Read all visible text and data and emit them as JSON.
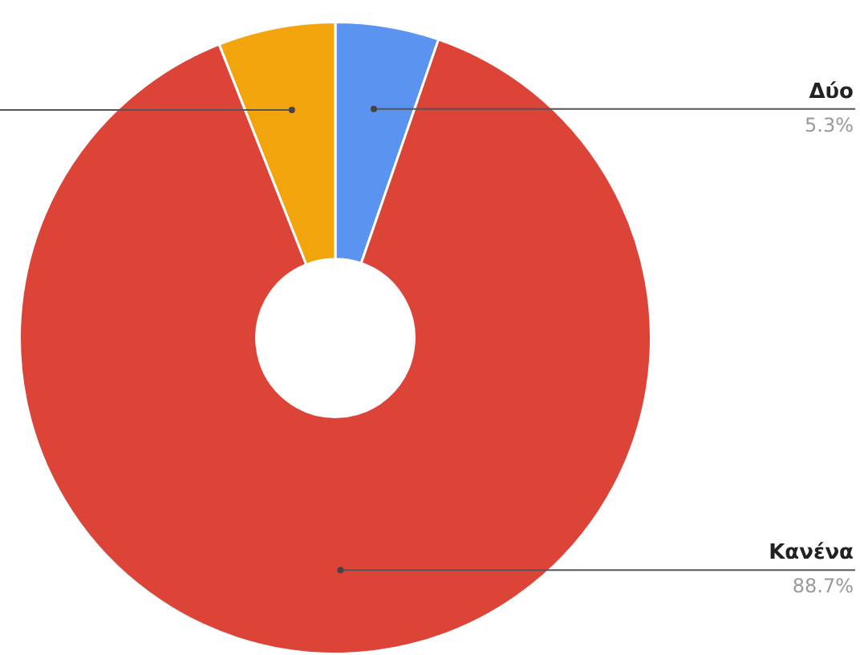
{
  "chart_data": {
    "type": "donut",
    "categories": [
      "Δύο",
      "Κανένα",
      null
    ],
    "values": [
      5.3,
      88.7,
      6.0
    ],
    "colors": [
      "#5a93f0",
      "#dc4437",
      "#f2a40c"
    ],
    "value_labels": [
      "5.3%",
      "88.7%",
      null
    ],
    "legend": false
  }
}
